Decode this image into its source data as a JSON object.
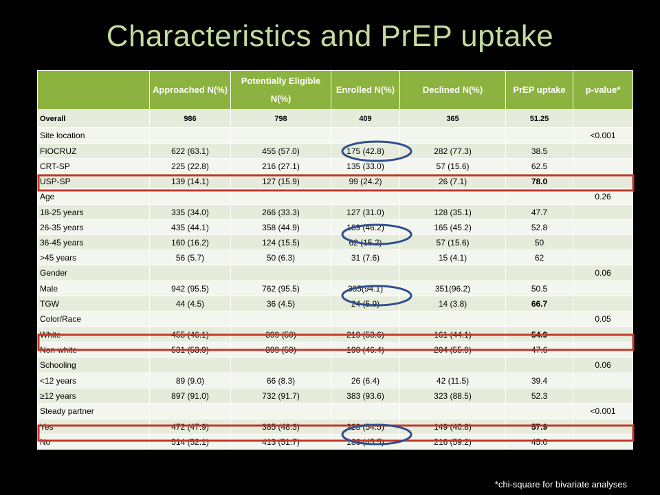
{
  "title": "Characteristics and PrEP uptake",
  "footnote": "*chi-square for bivariate analyses",
  "headers": [
    "",
    "Approached N(%)",
    "Potentially Eligible N(%)",
    "Enrolled N(%)",
    "Declined N(%)",
    "PrEP uptake",
    "p-value*"
  ],
  "rows": [
    {
      "type": "overall",
      "label": "Overall",
      "cells": [
        "986",
        "798",
        "409",
        "365",
        "51.25",
        ""
      ]
    },
    {
      "type": "section",
      "label": "Site location",
      "cells": [
        "",
        "",
        "",
        "",
        "",
        "<0.001"
      ]
    },
    {
      "type": "sub",
      "label": "FIOCRUZ",
      "cells": [
        "622 (63.1)",
        "455 (57.0)",
        "175 (42.8)",
        "282 (77.3)",
        "38.5",
        ""
      ]
    },
    {
      "type": "sub",
      "label": "CRT-SP",
      "cells": [
        "225 (22.8)",
        "216 (27.1)",
        "135 (33.0)",
        "57 (15.6)",
        "62.5",
        ""
      ]
    },
    {
      "type": "sub",
      "label": "USP-SP",
      "cells": [
        "139 (14.1)",
        "127 (15.9)",
        "99 (24.2)",
        "26 (7.1)",
        "78.0",
        ""
      ],
      "bold_uptake": true
    },
    {
      "type": "section",
      "label": "Age",
      "cells": [
        "",
        "",
        "",
        "",
        "",
        "0.26"
      ]
    },
    {
      "type": "sub",
      "label": "18-25 years",
      "cells": [
        "335 (34.0)",
        "266 (33.3)",
        "127 (31.0)",
        "128 (35.1)",
        "47.7",
        ""
      ]
    },
    {
      "type": "sub",
      "label": "26-35 years",
      "cells": [
        "435 (44.1)",
        "358 (44.9)",
        "189 (46.2)",
        "165 (45.2)",
        "52.8",
        ""
      ]
    },
    {
      "type": "sub",
      "label": "36-45 years",
      "cells": [
        "160 (16.2)",
        "124 (15.5)",
        "62 (15.2)",
        "57 (15.6)",
        "50",
        ""
      ]
    },
    {
      "type": "sub",
      "label": ">45 years",
      "cells": [
        "56 (5.7)",
        "50 (6.3)",
        "31 (7.6)",
        "15 (4.1)",
        "62",
        ""
      ]
    },
    {
      "type": "section",
      "label": "Gender",
      "cells": [
        "",
        "",
        "",
        "",
        "",
        "0.06"
      ]
    },
    {
      "type": "sub",
      "label": "Male",
      "cells": [
        "942 (95.5)",
        "762 (95.5)",
        "385(94.1)",
        "351(96.2)",
        "50.5",
        ""
      ]
    },
    {
      "type": "sub",
      "label": "TGW",
      "cells": [
        "44 (4.5)",
        "36 (4.5)",
        "24 (5.9)",
        "14 (3.8)",
        "66.7",
        ""
      ],
      "bold_uptake": true
    },
    {
      "type": "section",
      "label": "Color/Race",
      "cells": [
        "",
        "",
        "",
        "",
        "",
        "0.05"
      ]
    },
    {
      "type": "sub",
      "label": "White",
      "cells": [
        "455 (46.1)",
        "399 (50)",
        "219 (53.6)",
        "161 (44.1)",
        "54.9",
        ""
      ],
      "bold_uptake": true
    },
    {
      "type": "sub",
      "label": "Non-white",
      "cells": [
        "531 (53.9)",
        "399 (50)",
        "190 (46.4)",
        "204 (55.9)",
        "47.6",
        ""
      ]
    },
    {
      "type": "section",
      "label": "Schooling",
      "cells": [
        "",
        "",
        "",
        "",
        "",
        "0.06"
      ]
    },
    {
      "type": "sub",
      "label": "<12 years",
      "cells": [
        "89 (9.0)",
        "66 (8.3)",
        "26 (6.4)",
        "42 (11.5)",
        "39.4",
        ""
      ]
    },
    {
      "type": "sub",
      "label": "≥12 years",
      "cells": [
        "897 (91.0)",
        "732 (91.7)",
        "383 (93.6)",
        "323 (88.5)",
        "52.3",
        ""
      ]
    },
    {
      "type": "section",
      "label": "Steady partner",
      "cells": [
        "",
        "",
        "",
        "",
        "",
        "<0.001"
      ]
    },
    {
      "type": "sub",
      "label": "Yes",
      "cells": [
        "472 (47.9)",
        "385 (48.3)",
        "223 (54.5)",
        "149 (40.8)",
        "57.9",
        ""
      ],
      "bold_uptake": true
    },
    {
      "type": "sub",
      "label": "No",
      "cells": [
        "514 (52.1)",
        "413 (51.7)",
        "186 (45.5)",
        "216 (59.2)",
        "45.0",
        ""
      ]
    }
  ],
  "colors": {
    "header_bg": "#8cb33f",
    "row_odd": "#e6ecdc",
    "row_even": "#f3f6ee",
    "title": "#c3dba0",
    "highlight_red": "#c0392b",
    "highlight_blue": "#2f4f8f"
  }
}
